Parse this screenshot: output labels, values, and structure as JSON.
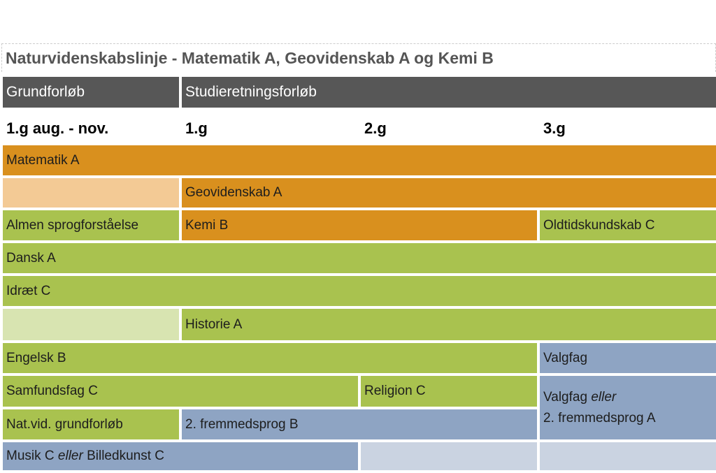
{
  "title": "Naturvidenskabslinje - Matematik A, Geovidenskab A og Kemi B",
  "header": {
    "grundforlob": "Grundforløb",
    "studieretning": "Studieretningsforløb"
  },
  "years": [
    "1.g aug. - nov.",
    "1.g",
    "2.g",
    "3.g"
  ],
  "subjects": {
    "matematik": "Matematik A",
    "geovidenskab": "Geovidenskab A",
    "almen_sprog": "Almen sprogforståelse",
    "kemi": "Kemi B",
    "oldtid": "Oldtidskundskab C",
    "dansk": "Dansk A",
    "idraet": "Idræt C",
    "historie": "Historie A",
    "engelsk": "Engelsk B",
    "valgfag": "Valgfag",
    "samfundsfag": "Samfundsfag C",
    "religion": "Religion C",
    "valgfag2_a": "Valgfag",
    "valgfag2_eller": "eller",
    "valgfag2_b": "2. fremmedsprog A",
    "natvid": "Nat.vid. grundforløb",
    "fremmedsprog_b": "2. fremmedsprog B",
    "musik_a": "Musik C",
    "musik_eller": "eller",
    "musik_b": "Billedkunst C"
  },
  "colors": {
    "orange": "#D9901E",
    "orange_light": "#F3CA95",
    "green": "#A9C24F",
    "green_light": "#D8E4B1",
    "blue": "#8EA4C3",
    "blue_light": "#CAD3E1",
    "header": "#575757"
  }
}
